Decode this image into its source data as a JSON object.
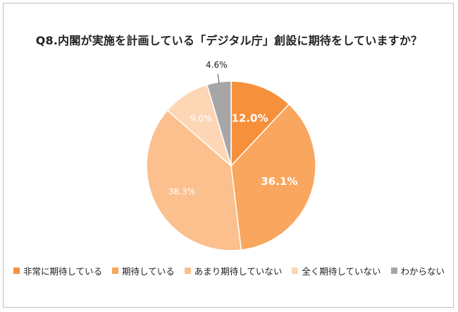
{
  "title": "Q8.内閣が実施を計画している「デジタル庁」創設に期待をしていますか？",
  "chart_data": {
    "type": "pie",
    "title": "Q8.内閣が実施を計画している「デジタル庁」創設に期待をしていますか？",
    "start": "12 o'clock, clockwise",
    "slices": [
      {
        "label": "非常に期待している",
        "value": 12.0,
        "value_text": "12.0%",
        "color": "#f7903b",
        "label_color": "#ffffff",
        "label_bold": true
      },
      {
        "label": "期待している",
        "value": 36.1,
        "value_text": "36.1%",
        "color": "#f9a65e",
        "label_color": "#ffffff",
        "label_bold": true
      },
      {
        "label": "あまり期待していない",
        "value": 38.3,
        "value_text": "38.3%",
        "color": "#fbc08d",
        "label_color": "#ffffff",
        "label_bold": false
      },
      {
        "label": "全く期待していない",
        "value": 9.0,
        "value_text": "9.0%",
        "color": "#fdd6b5",
        "label_color": "#ffffff",
        "label_bold": false
      },
      {
        "label": "わからない",
        "value": 4.6,
        "value_text": "4.6%",
        "color": "#a6a6a6",
        "label_color": "#222222",
        "label_bold": false,
        "label_outside": true
      }
    ],
    "legend_position": "bottom"
  }
}
